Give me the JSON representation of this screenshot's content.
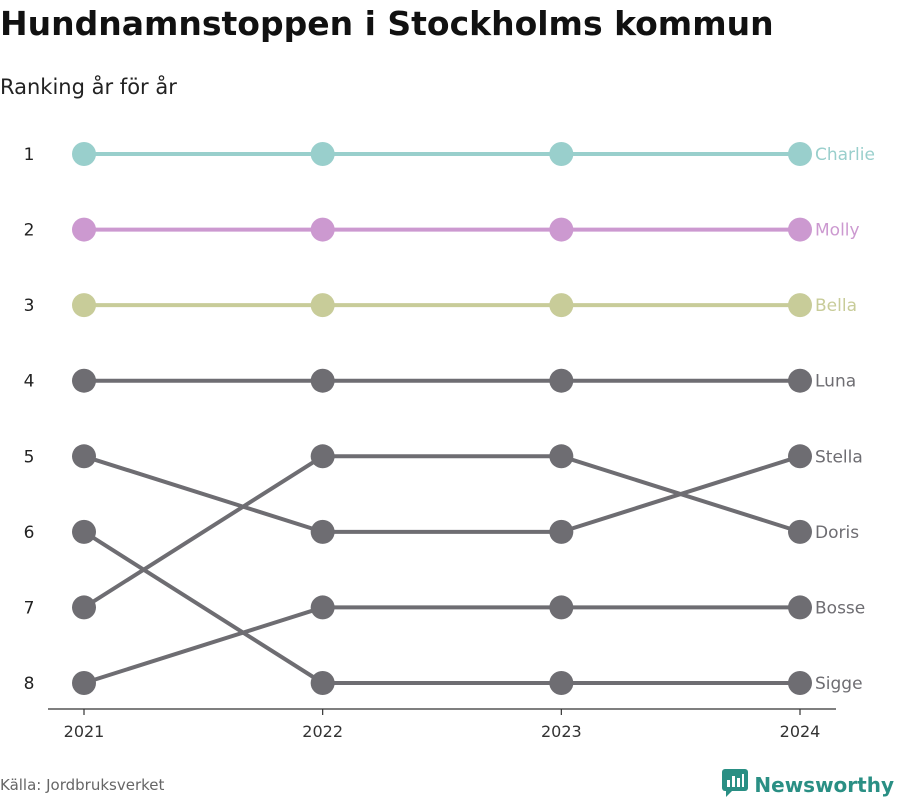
{
  "title": "Hundnamnstoppen i Stockholms kommun",
  "subtitle": "Ranking år för år",
  "source": "Källa: Jordbruksverket",
  "brand": {
    "name": "Newsworthy",
    "icon": "newsworthy-logo-icon",
    "color": "#2a8f84"
  },
  "chart_data": {
    "type": "line",
    "x": [
      "2021",
      "2022",
      "2023",
      "2024"
    ],
    "y_ticks": [
      1,
      2,
      3,
      4,
      5,
      6,
      7,
      8
    ],
    "y_reversed": true,
    "ylim": [
      1,
      8
    ],
    "legend": "labels at right end of lines",
    "series": [
      {
        "name": "Charlie",
        "values": [
          1,
          1,
          1,
          1
        ],
        "color": "#99cfcc"
      },
      {
        "name": "Molly",
        "values": [
          2,
          2,
          2,
          2
        ],
        "color": "#cc99d0"
      },
      {
        "name": "Bella",
        "values": [
          3,
          3,
          3,
          3
        ],
        "color": "#c8cc99"
      },
      {
        "name": "Luna",
        "values": [
          4,
          4,
          4,
          4
        ],
        "color": "#6e6d72"
      },
      {
        "name": "Stella",
        "values": [
          5,
          6,
          6,
          5
        ],
        "color": "#6e6d72"
      },
      {
        "name": "Doris",
        "values": [
          7,
          5,
          5,
          6
        ],
        "color": "#6e6d72"
      },
      {
        "name": "Bosse",
        "values": [
          8,
          7,
          7,
          7
        ],
        "color": "#6e6d72"
      },
      {
        "name": "Sigge",
        "values": [
          6,
          8,
          8,
          8
        ],
        "color": "#6e6d72"
      }
    ]
  }
}
